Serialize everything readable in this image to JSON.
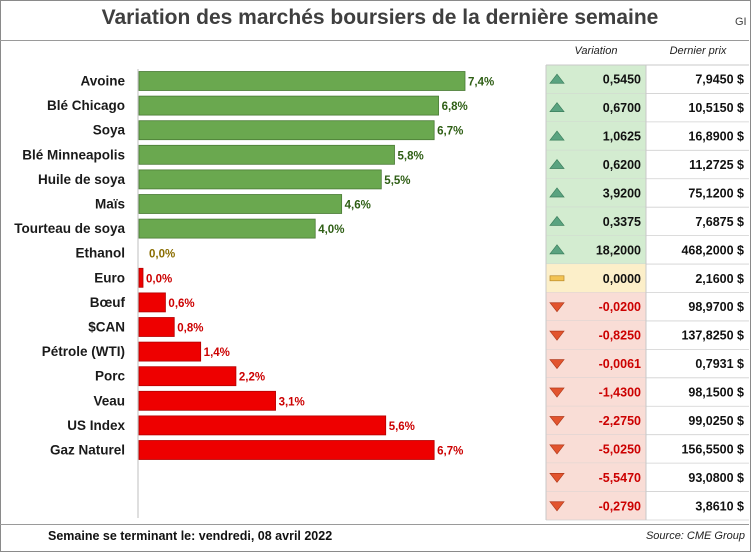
{
  "title": "Variation des marchés boursiers de la dernière semaine",
  "corner_text": "GI",
  "table_headers": {
    "variation": "Variation",
    "price": "Dernier prix"
  },
  "footer": {
    "week_label": "Semaine se terminant le: vendredi, 08 avril 2022",
    "source": "Source: CME Group"
  },
  "colors": {
    "up_bar": "#6aa84f",
    "down_bar": "#ee0000",
    "up_label": "#2e5e14",
    "down_label": "#cc0000",
    "neutral_label": "#8a6d00",
    "up_cell": "#d3ecd0",
    "neutral_cell": "#fcefc9",
    "down_cell": "#f9ddd6",
    "up_icon": "#5aa380",
    "neutral_icon": "#f3c353",
    "down_icon": "#e2542e"
  },
  "chart_data": {
    "type": "bar",
    "orientation": "horizontal",
    "categories": [
      "Avoine",
      "Blé Chicago",
      "Soya",
      "Blé Minneapolis",
      "Huile de soya",
      "Maïs",
      "Tourteau de soya",
      "Ethanol",
      "Euro",
      "Bœuf",
      "$CAN",
      "Pétrole (WTI)",
      "Porc",
      "Veau",
      "US Index",
      "Gaz Naturel"
    ],
    "values": [
      7.4,
      6.8,
      6.7,
      5.8,
      5.5,
      4.6,
      4.0,
      0.0,
      0.0,
      0.6,
      0.8,
      1.4,
      2.2,
      3.1,
      5.6,
      6.7
    ],
    "value_labels": [
      "7,4%",
      "6,8%",
      "6,7%",
      "5,8%",
      "5,5%",
      "4,6%",
      "4,0%",
      "0,0%",
      "0,0%",
      "0,6%",
      "0,8%",
      "1,4%",
      "2,2%",
      "3,1%",
      "5,6%",
      "6,7%"
    ],
    "directions": [
      "up",
      "up",
      "up",
      "up",
      "up",
      "up",
      "up",
      "neutral",
      "down",
      "down",
      "down",
      "down",
      "down",
      "down",
      "down",
      "down"
    ],
    "variation": [
      "0,5450",
      "0,6700",
      "1,0625",
      "0,6200",
      "3,9200",
      "0,3375",
      "18,2000",
      "0,0000",
      "-0,0200",
      "-0,8250",
      "-0,0061",
      "-1,4300",
      "-2,2750",
      "-5,0250",
      "-5,5470",
      "-0,2790"
    ],
    "last_price": [
      "7,9450 $",
      "10,5150 $",
      "16,8900 $",
      "11,2725 $",
      "75,1200 $",
      "7,6875 $",
      "468,2000 $",
      "2,1600 $",
      "98,9700 $",
      "137,8250 $",
      "0,7931 $",
      "98,1500 $",
      "99,0250 $",
      "156,5500 $",
      "93,0800 $",
      "3,8610 $"
    ],
    "xlim": [
      0,
      8.0
    ],
    "grid": false,
    "legend": "none"
  }
}
